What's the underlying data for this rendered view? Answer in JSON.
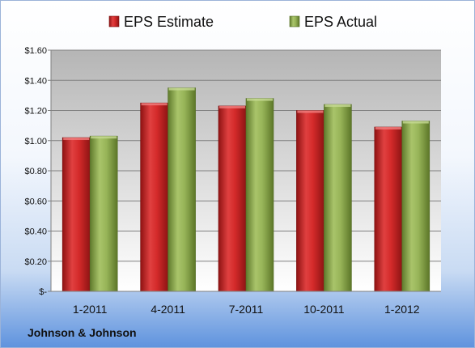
{
  "company_label": "Johnson & Johnson",
  "chart_data": {
    "type": "bar",
    "categories": [
      "1-2011",
      "4-2011",
      "7-2011",
      "10-2011",
      "1-2012"
    ],
    "series": [
      {
        "name": "EPS Estimate",
        "values": [
          1.02,
          1.25,
          1.23,
          1.2,
          1.09
        ],
        "color": "#cc2222"
      },
      {
        "name": "EPS Actual",
        "values": [
          1.03,
          1.35,
          1.28,
          1.24,
          1.13
        ],
        "color": "#8fac4e"
      }
    ],
    "y_ticks": [
      {
        "value": 0,
        "label": "$-"
      },
      {
        "value": 0.2,
        "label": "$0.20"
      },
      {
        "value": 0.4,
        "label": "$0.40"
      },
      {
        "value": 0.6,
        "label": "$0.60"
      },
      {
        "value": 0.8,
        "label": "$0.80"
      },
      {
        "value": 1.0,
        "label": "$1.00"
      },
      {
        "value": 1.2,
        "label": "$1.20"
      },
      {
        "value": 1.4,
        "label": "$1.40"
      },
      {
        "value": 1.6,
        "label": "$1.60"
      }
    ],
    "ylim": [
      0,
      1.6
    ],
    "grid": true,
    "legend_position": "top"
  }
}
